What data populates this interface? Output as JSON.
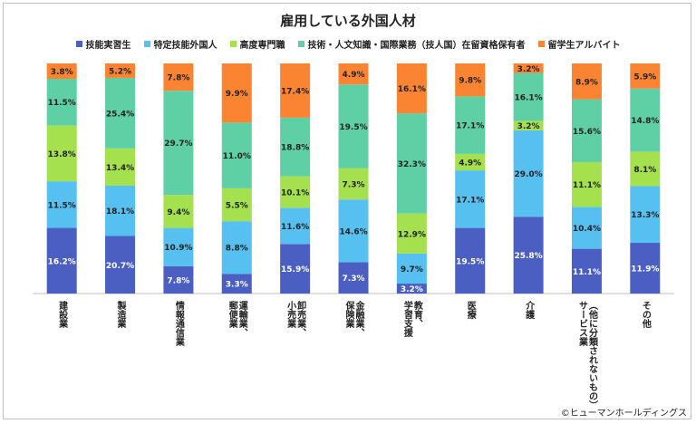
{
  "chart_data": {
    "type": "bar",
    "stacked": true,
    "title": "雇用している外国人材",
    "categories": [
      "建設業",
      "製造業",
      "情報通信業",
      "運輸業、郵便業",
      "卸売業、小売業",
      "金融業、保険業",
      "教育、学習支援",
      "医療",
      "介護",
      "サービス業（他に分類されないもの）",
      "その他"
    ],
    "category_lines": [
      [
        "建設業"
      ],
      [
        "製造業"
      ],
      [
        "情報通信業"
      ],
      [
        "運輸業、",
        "郵便業"
      ],
      [
        "卸売業、",
        "小売業"
      ],
      [
        "金融業、",
        "保険業"
      ],
      [
        "教育、",
        "学習支援"
      ],
      [
        "医療"
      ],
      [
        "介護"
      ],
      [
        "（他に分類されないもの）",
        "サービス業"
      ],
      [
        "その他"
      ]
    ],
    "series": [
      {
        "name": "技能実習生",
        "color": "#4a5fc1",
        "values": [
          16.2,
          20.7,
          7.8,
          3.3,
          15.9,
          7.3,
          3.2,
          19.5,
          25.8,
          11.1,
          11.9
        ]
      },
      {
        "name": "特定技能外国人",
        "color": "#56c0f0",
        "values": [
          11.5,
          18.1,
          10.9,
          8.8,
          11.6,
          14.6,
          9.7,
          17.1,
          29.0,
          10.4,
          13.3
        ]
      },
      {
        "name": "高度専門職",
        "color": "#a5e04f",
        "values": [
          13.8,
          13.4,
          9.4,
          5.5,
          10.1,
          7.3,
          12.9,
          4.9,
          3.2,
          11.1,
          8.1
        ]
      },
      {
        "name": "技術・人文知識・国際業務（技人国）在留資格保有者",
        "color": "#5fcfa5",
        "values": [
          11.5,
          25.4,
          29.7,
          11.0,
          18.8,
          19.5,
          32.3,
          17.1,
          16.1,
          15.6,
          14.8
        ]
      },
      {
        "name": "留学生アルバイト",
        "color": "#fb8433",
        "values": [
          3.8,
          5.2,
          7.8,
          9.9,
          17.4,
          4.9,
          16.1,
          9.8,
          3.2,
          8.9,
          5.9
        ]
      }
    ],
    "labels": [
      [
        "16.2%",
        "20.7%",
        "7.8%",
        "3.3%",
        "15.9%",
        "7.3%",
        "3.2%",
        "19.5%",
        "25.8%",
        "11.1%",
        "11.9%"
      ],
      [
        "11.5%",
        "18.1%",
        "10.9%",
        "8.8%",
        "11.6%",
        "14.6%",
        "9.7%",
        "17.1%",
        "29.0%",
        "10.4%",
        "13.3%"
      ],
      [
        "13.8%",
        "13.4%",
        "9.4%",
        "5.5%",
        "10.1%",
        "7.3%",
        "12.9%",
        "4.9%",
        "3.2%",
        "11.1%",
        "8.1%"
      ],
      [
        "11.5%",
        "25.4%",
        "29.7%",
        "11.0%",
        "18.8%",
        "19.5%",
        "32.3%",
        "17.1%",
        "16.1%",
        "15.6%",
        "14.8%"
      ],
      [
        "3.8%",
        "5.2%",
        "7.8%",
        "9.9%",
        "17.4%",
        "4.9%",
        "16.1%",
        "9.8%",
        "3.2%",
        "8.9%",
        "5.9%"
      ]
    ],
    "legend_position": "top",
    "grid": false
  },
  "credit": "©ヒューマンホールディングス"
}
